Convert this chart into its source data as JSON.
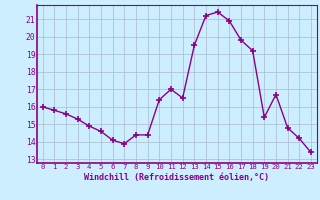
{
  "x": [
    0,
    1,
    2,
    3,
    4,
    5,
    6,
    7,
    8,
    9,
    10,
    11,
    12,
    13,
    14,
    15,
    16,
    17,
    18,
    19,
    20,
    21,
    22,
    23
  ],
  "y": [
    16.0,
    15.8,
    15.6,
    15.3,
    14.9,
    14.6,
    14.1,
    13.9,
    14.4,
    14.4,
    16.4,
    17.0,
    16.5,
    19.5,
    21.2,
    21.4,
    20.9,
    19.8,
    19.2,
    15.4,
    16.7,
    14.8,
    14.2,
    13.4
  ],
  "line_color": "#880088",
  "marker": "+",
  "markersize": 4,
  "linewidth": 1.0,
  "xlabel": "Windchill (Refroidissement éolien,°C)",
  "xlim": [
    -0.5,
    23.5
  ],
  "ylim": [
    12.8,
    21.8
  ],
  "yticks": [
    13,
    14,
    15,
    16,
    17,
    18,
    19,
    20,
    21
  ],
  "xticks": [
    0,
    1,
    2,
    3,
    4,
    5,
    6,
    7,
    8,
    9,
    10,
    11,
    12,
    13,
    14,
    15,
    16,
    17,
    18,
    19,
    20,
    21,
    22,
    23
  ],
  "bg_color": "#cceeff",
  "grid_color": "#aabbcc",
  "tick_color": "#880088",
  "label_color": "#880088",
  "axis_color": "#880088"
}
